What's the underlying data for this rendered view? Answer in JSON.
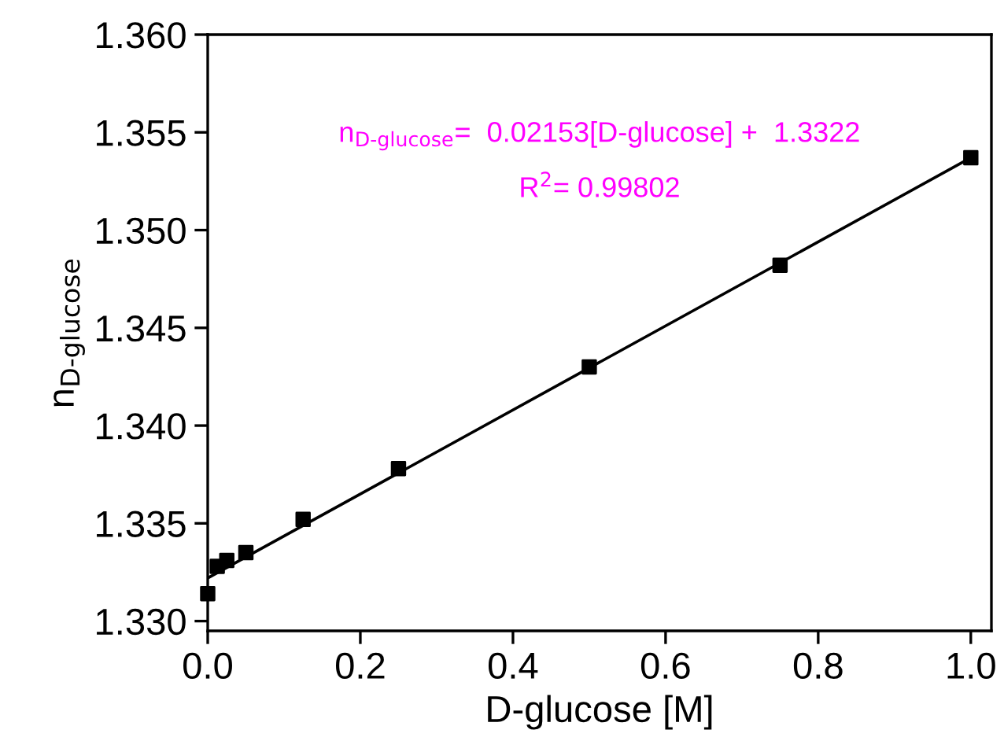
{
  "chart_data": {
    "type": "scatter",
    "xlabel": "D-glucose [M]",
    "ylabel": "n$_{D-glucose}$",
    "x": [
      0,
      0.0125,
      0.025,
      0.05,
      0.125,
      0.25,
      0.5,
      0.75,
      1.0
    ],
    "series": [
      {
        "color": "#000000",
        "marker": "square",
        "values": [
          1.3314,
          1.3328,
          1.3331,
          1.3335,
          1.3352,
          1.3378,
          1.343,
          1.3482,
          1.3537
        ]
      },
      {
        "type": "line",
        "color": "#000000",
        "marker": "none",
        "line_style": "solid",
        "x": [
          0,
          1.0
        ],
        "values": [
          1.3322,
          1.3537
        ]
      }
    ],
    "xlim": [
      0,
      1.027
    ],
    "ylim": [
      1.3295,
      1.36
    ],
    "xticks": [
      {
        "value": 0,
        "label": "0.0"
      },
      {
        "value": 0.2,
        "label": "0.2"
      },
      {
        "value": 0.4,
        "label": "0.4"
      },
      {
        "value": 0.6,
        "label": "0.6"
      },
      {
        "value": 0.8,
        "label": "0.8"
      },
      {
        "value": 1.0,
        "label": "1.0"
      }
    ],
    "yticks": [
      {
        "value": 1.33,
        "label": "1.330"
      },
      {
        "value": 1.335,
        "label": "1.335"
      },
      {
        "value": 1.34,
        "label": "1.340"
      },
      {
        "value": 1.345,
        "label": "1.345"
      },
      {
        "value": 1.35,
        "label": "1.350"
      },
      {
        "value": 1.355,
        "label": "1.355"
      },
      {
        "value": 1.36,
        "label": "1.360"
      }
    ],
    "annotations": [
      "n$_{D-glucose}$=  0.02153[D-glucose] +  1.3322",
      "R$^{2}$= 0.99802"
    ],
    "grid": false,
    "legend": false
  }
}
